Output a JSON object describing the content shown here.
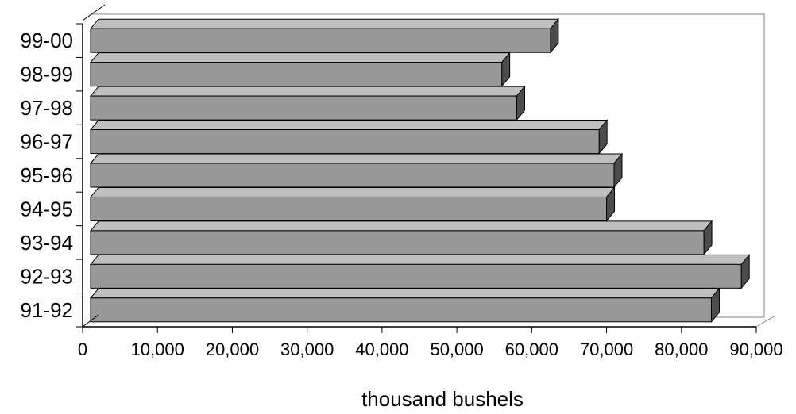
{
  "chart_data": {
    "type": "bar",
    "orientation": "horizontal",
    "three_d": true,
    "categories": [
      "91-92",
      "92-93",
      "93-94",
      "94-95",
      "95-96",
      "96-97",
      "97-98",
      "98-99",
      "99-00"
    ],
    "values": [
      84000,
      88000,
      83000,
      70000,
      71000,
      69000,
      58000,
      56000,
      62500
    ],
    "title": "",
    "xlabel": "thousand bushels",
    "ylabel": "",
    "xlim": [
      0,
      90000
    ],
    "x_ticks": [
      0,
      10000,
      20000,
      30000,
      40000,
      50000,
      60000,
      70000,
      80000,
      90000
    ],
    "x_tick_labels": [
      "0",
      "10,000",
      "20,000",
      "30,000",
      "40,000",
      "50,000",
      "60,000",
      "70,000",
      "80,000",
      "90,000"
    ],
    "grid": false,
    "legend": "none",
    "colors": {
      "bar_face": "#999999",
      "bar_top": "#bfbfbf",
      "bar_side": "#4d4d4d",
      "outline": "#000000",
      "wall": "#808080"
    }
  }
}
